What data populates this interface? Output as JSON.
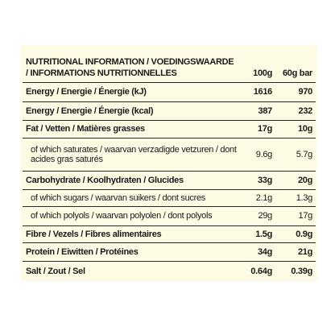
{
  "table": {
    "header": [
      "NUTRITIONAL INFORMATION / VOEDINGSWAARDE / INFORMATIONS NUTRITIONNELLES",
      "100g",
      "60g bar"
    ],
    "rows": [
      [
        "Energy / Energie / Énergie (kJ)",
        "1616",
        "970"
      ],
      [
        "Energy / Energie / Énergie (kcal)",
        "387",
        "232"
      ],
      [
        "Fat / Vetten / Matières grasses",
        "17g",
        "10g"
      ],
      [
        "of which saturates / waarvan verzadigde vetzuren / dont acides gras saturés",
        "9.6g",
        "5.7g"
      ],
      [
        "Carbohydrate / Koolhydraten / Glucides",
        "33g",
        "20g"
      ],
      [
        "of which sugars / waarvan suikers / dont sucres",
        "2.1g",
        "1.3g"
      ],
      [
        "of which polyols / waarvan polyolen / dont polyols",
        "29g",
        "17g"
      ],
      [
        "Fibre / Vezels / Fibres alimentaires",
        "1.5g",
        "0.9g"
      ],
      [
        "Protein / Eiwitten / Protéines",
        "34g",
        "21g"
      ],
      [
        "Salt / Zout / Sel",
        "0.64g",
        "0.39g"
      ]
    ]
  }
}
